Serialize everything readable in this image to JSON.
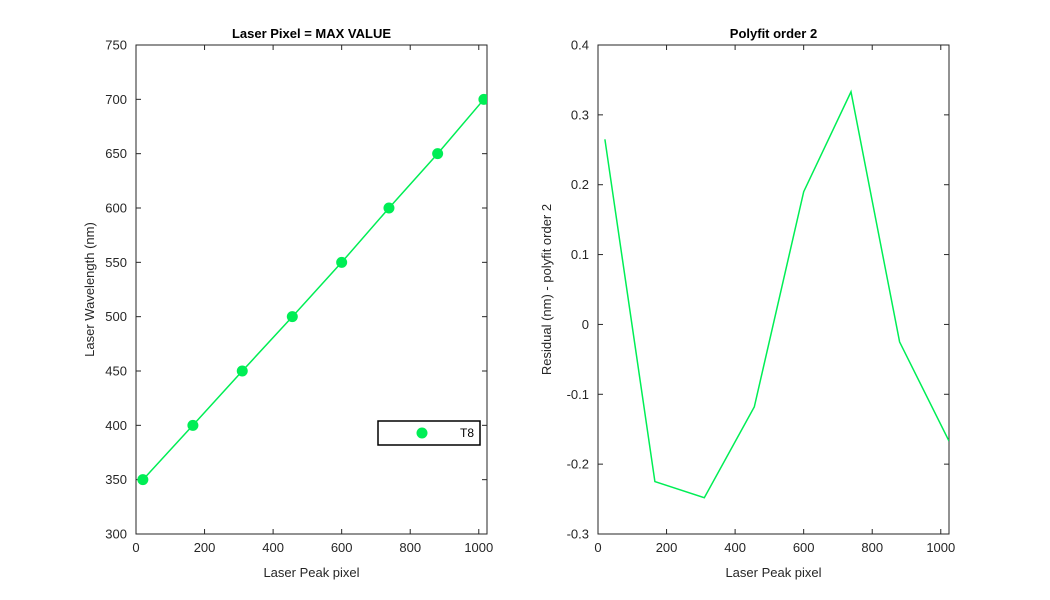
{
  "chart_data": [
    {
      "type": "line",
      "title": "Laser Pixel = MAX VALUE",
      "xlabel": "Laser Peak pixel",
      "ylabel": "Laser Wavelength (nm)",
      "xlim": [
        0,
        1024
      ],
      "ylim": [
        300,
        750
      ],
      "xticks": [
        0,
        200,
        400,
        600,
        800,
        1000
      ],
      "yticks": [
        300,
        350,
        400,
        450,
        500,
        550,
        600,
        650,
        700,
        750
      ],
      "grid": false,
      "legend": "lower-right",
      "series": [
        {
          "name": "T8",
          "color": "#00ee55",
          "markers": true,
          "x": [
            20,
            166,
            310,
            456,
            600,
            738,
            880,
            1015
          ],
          "y": [
            350,
            400,
            450,
            500,
            550,
            600,
            650,
            700
          ]
        }
      ]
    },
    {
      "type": "line",
      "title": "Polyfit order 2",
      "xlabel": "Laser Peak pixel",
      "ylabel": "Residual (nm) - polyfit order 2",
      "xlim": [
        0,
        1024
      ],
      "ylim": [
        -0.3,
        0.4
      ],
      "xticks": [
        0,
        200,
        400,
        600,
        800,
        1000
      ],
      "yticks": [
        -0.3,
        -0.2,
        -0.1,
        0,
        0.1,
        0.2,
        0.3,
        0.4
      ],
      "grid": false,
      "series": [
        {
          "color": "#00ee55",
          "markers": false,
          "x": [
            20,
            166,
            310,
            456,
            600,
            738,
            880,
            1024
          ],
          "y": [
            0.265,
            -0.225,
            -0.248,
            -0.118,
            0.19,
            0.333,
            -0.025,
            -0.167
          ]
        }
      ]
    }
  ]
}
